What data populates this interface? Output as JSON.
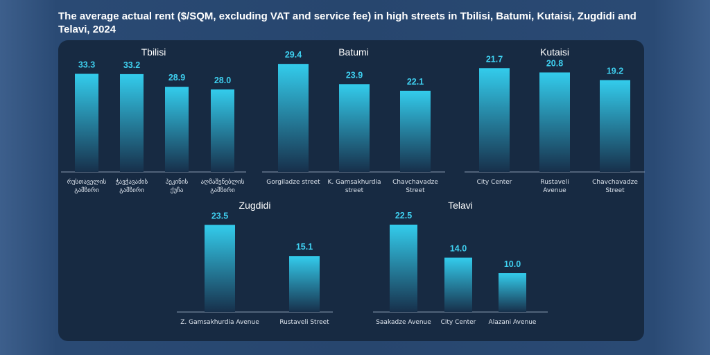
{
  "title": "The average actual rent ($/SQM, excluding VAT and service fee) in high  streets in Tbilisi, Batumi, Kutaisi, Zugdidi and Telavi, 2024",
  "colors": {
    "bar_top": "#33ccec",
    "bar_bottom": "#17304b",
    "value_text": "#3fd0f0",
    "axis": "#8a9bb0"
  },
  "chart_data": [
    {
      "type": "bar",
      "title": "Tbilisi",
      "categories": [
        "რუსთაველის გამზირი",
        "ჭავჭავაძის გამზირი",
        "პეკინის ქუჩა",
        "აღმაშენებლის გამზირი"
      ],
      "values": [
        33.3,
        33.2,
        28.9,
        28.0
      ]
    },
    {
      "type": "bar",
      "title": "Batumi",
      "categories": [
        "Gorgiladze street",
        "K. Gamsakhurdia street",
        "Chavchavadze Street"
      ],
      "values": [
        29.4,
        23.9,
        22.1
      ]
    },
    {
      "type": "bar",
      "title": "Kutaisi",
      "categories": [
        "City Center",
        "Rustaveli Avenue",
        "Chavchavadze Street"
      ],
      "values": [
        21.7,
        20.8,
        19.2
      ]
    },
    {
      "type": "bar",
      "title": "Zugdidi",
      "categories": [
        "Z. Gamsakhurdia Avenue",
        "Rustaveli Street"
      ],
      "values": [
        23.5,
        15.1
      ]
    },
    {
      "type": "bar",
      "title": "Telavi",
      "categories": [
        "Saakadze Avenue",
        "City Center",
        "Alazani Avenue"
      ],
      "values": [
        22.5,
        14.0,
        10.0
      ]
    }
  ]
}
